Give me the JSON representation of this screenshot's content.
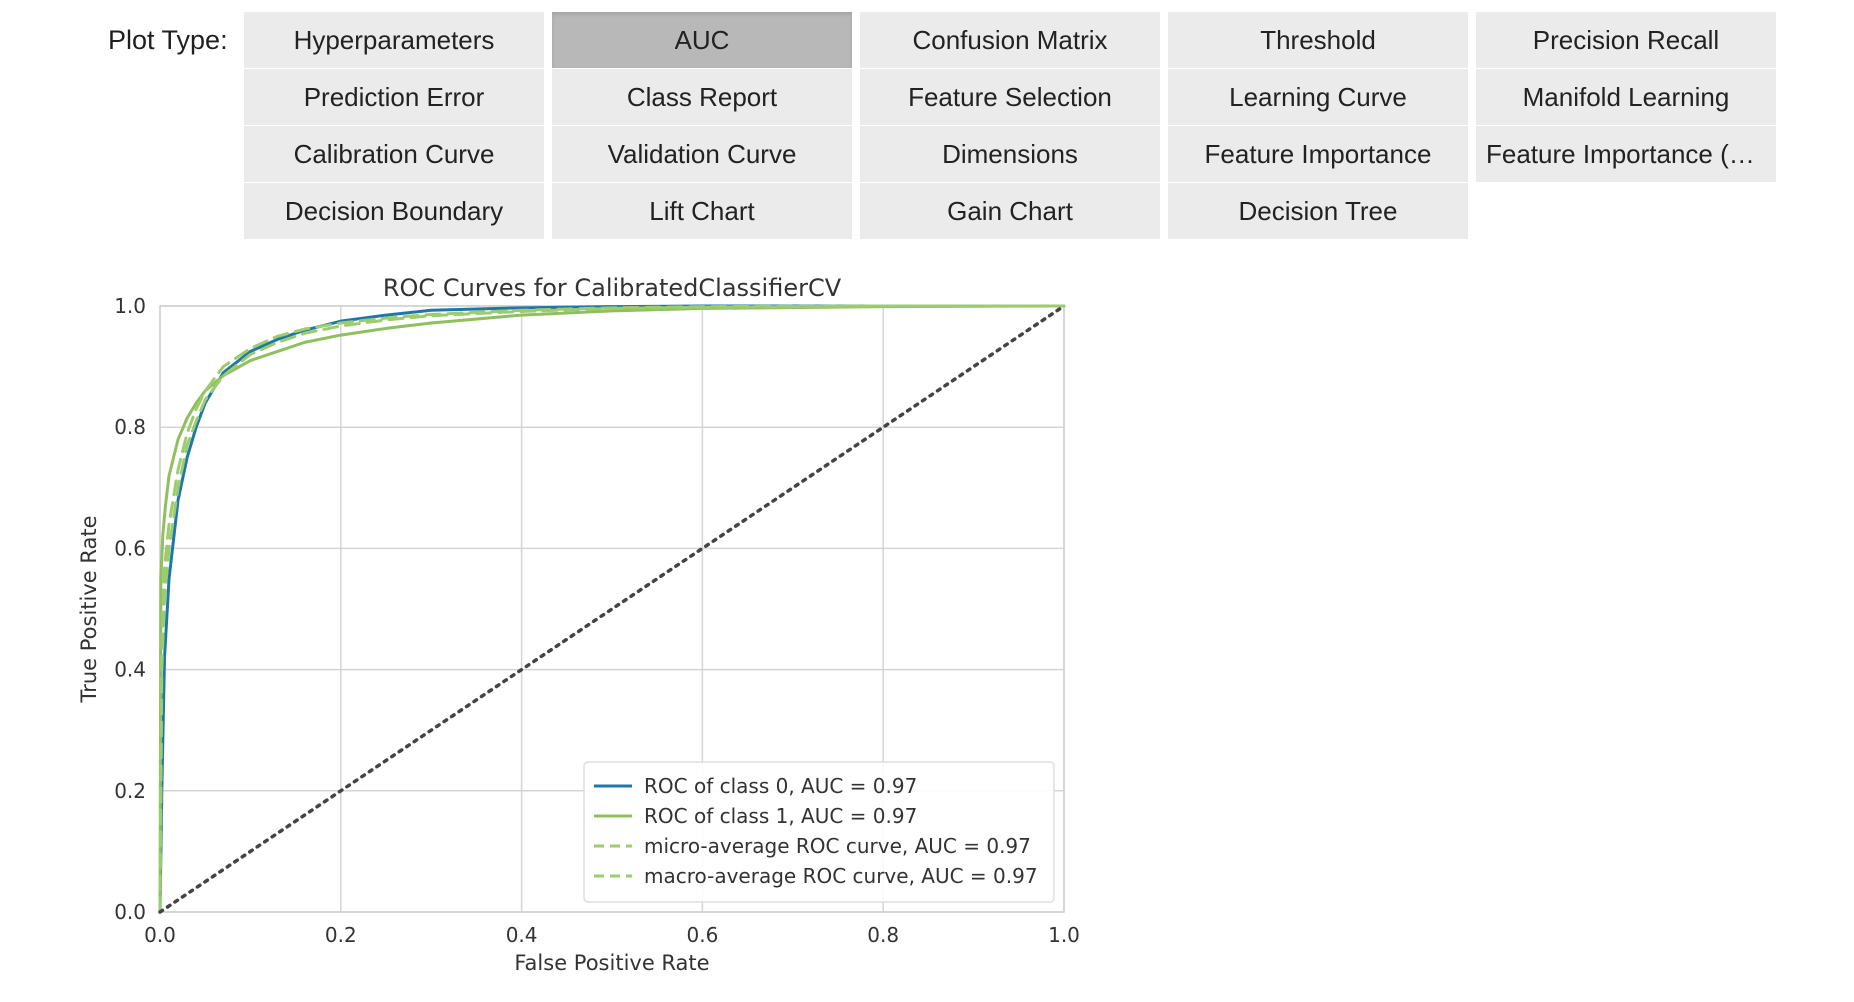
{
  "plot_type_label": "Plot Type:",
  "selected_plot": "AUC",
  "buttons": [
    "Hyperparameters",
    "AUC",
    "Confusion Matrix",
    "Threshold",
    "Precision Recall",
    "Prediction Error",
    "Class Report",
    "Feature Selection",
    "Learning Curve",
    "Manifold Learning",
    "Calibration Curve",
    "Validation Curve",
    "Dimensions",
    "Feature Importance",
    "Feature Importance (All)",
    "Decision Boundary",
    "Lift Chart",
    "Gain Chart",
    "Decision Tree"
  ],
  "colors": {
    "class0": "#1f77a8",
    "class1": "#8fbf5f",
    "average": "#9ccc6f",
    "diagonal": "#444444",
    "button_bg": "#ebebeb",
    "button_selected_bg": "#b8b8b8"
  },
  "chart_data": {
    "type": "line",
    "title": "ROC Curves for CalibratedClassifierCV",
    "xlabel": "False Positive Rate",
    "ylabel": "True Positive Rate",
    "xlim": [
      0.0,
      1.0
    ],
    "ylim": [
      0.0,
      1.0
    ],
    "x_ticks": [
      "0.0",
      "0.2",
      "0.4",
      "0.6",
      "0.8",
      "1.0"
    ],
    "y_ticks": [
      "0.0",
      "0.2",
      "0.4",
      "0.6",
      "0.8",
      "1.0"
    ],
    "grid": true,
    "legend_position": "lower-right",
    "series": [
      {
        "name": "ROC of class 0, AUC = 0.97",
        "style": "solid",
        "color_key": "class0",
        "x": [
          0.0,
          0.002,
          0.005,
          0.01,
          0.02,
          0.03,
          0.04,
          0.05,
          0.07,
          0.1,
          0.13,
          0.16,
          0.2,
          0.25,
          0.3,
          0.4,
          0.5,
          0.6,
          0.8,
          1.0
        ],
        "y": [
          0.0,
          0.2,
          0.42,
          0.55,
          0.68,
          0.75,
          0.8,
          0.84,
          0.89,
          0.925,
          0.945,
          0.96,
          0.975,
          0.985,
          0.993,
          0.997,
          0.999,
          1.0,
          1.0,
          1.0
        ]
      },
      {
        "name": "ROC of class 1, AUC = 0.97",
        "style": "solid",
        "color_key": "class1",
        "x": [
          0.0,
          0.001,
          0.003,
          0.006,
          0.01,
          0.02,
          0.03,
          0.04,
          0.05,
          0.07,
          0.1,
          0.13,
          0.16,
          0.2,
          0.25,
          0.3,
          0.4,
          0.5,
          0.6,
          0.8,
          1.0
        ],
        "y": [
          0.0,
          0.55,
          0.62,
          0.67,
          0.72,
          0.78,
          0.815,
          0.84,
          0.86,
          0.885,
          0.91,
          0.925,
          0.94,
          0.952,
          0.963,
          0.972,
          0.985,
          0.992,
          0.996,
          0.999,
          1.0
        ]
      },
      {
        "name": "micro-average ROC curve, AUC = 0.97",
        "style": "dashed",
        "color_key": "average",
        "x": [
          0.0,
          0.002,
          0.005,
          0.01,
          0.02,
          0.03,
          0.04,
          0.05,
          0.07,
          0.1,
          0.13,
          0.16,
          0.2,
          0.25,
          0.3,
          0.4,
          0.5,
          0.6,
          0.8,
          1.0
        ],
        "y": [
          0.0,
          0.45,
          0.57,
          0.64,
          0.73,
          0.79,
          0.83,
          0.86,
          0.9,
          0.93,
          0.95,
          0.962,
          0.972,
          0.98,
          0.986,
          0.993,
          0.997,
          0.999,
          1.0,
          1.0
        ]
      },
      {
        "name": "macro-average ROC curve, AUC = 0.97",
        "style": "dashed",
        "color_key": "average",
        "x": [
          0.0,
          0.002,
          0.005,
          0.01,
          0.02,
          0.03,
          0.04,
          0.05,
          0.07,
          0.1,
          0.13,
          0.16,
          0.2,
          0.25,
          0.3,
          0.4,
          0.5,
          0.6,
          0.8,
          1.0
        ],
        "y": [
          0.0,
          0.4,
          0.52,
          0.6,
          0.7,
          0.77,
          0.81,
          0.845,
          0.885,
          0.92,
          0.94,
          0.955,
          0.967,
          0.977,
          0.984,
          0.991,
          0.996,
          0.998,
          1.0,
          1.0
        ]
      },
      {
        "name": "",
        "style": "dotted",
        "color_key": "diagonal",
        "x": [
          0.0,
          1.0
        ],
        "y": [
          0.0,
          1.0
        ]
      }
    ]
  }
}
